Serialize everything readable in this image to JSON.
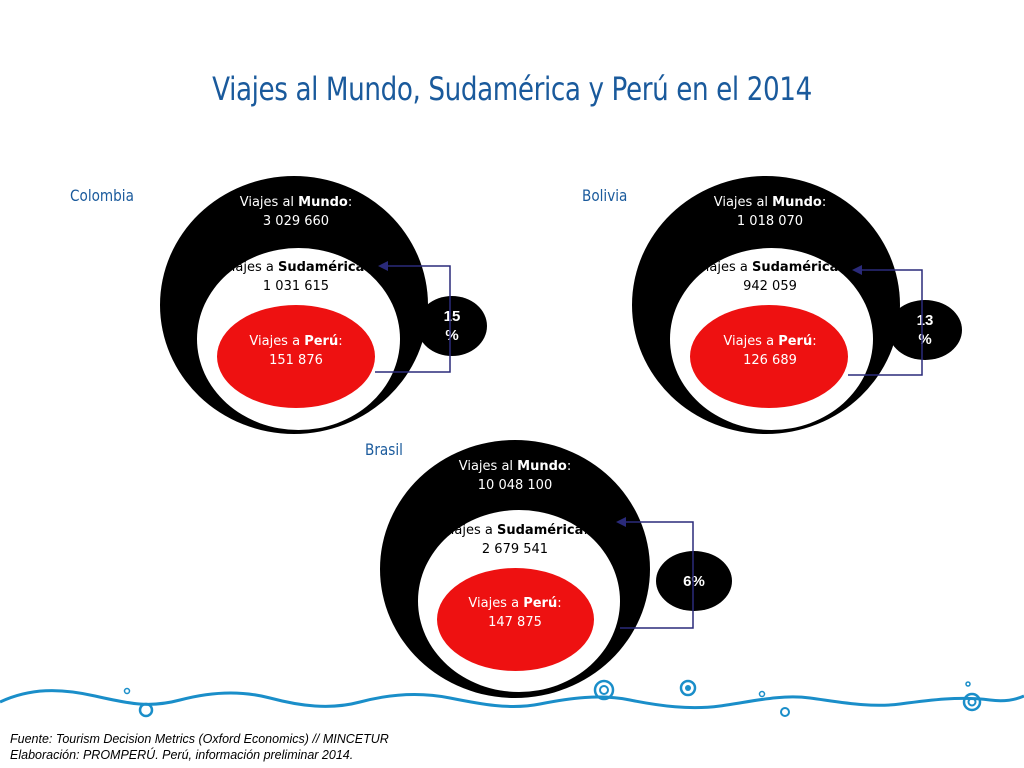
{
  "title": "Viajes al Mundo, Sudamérica y Perú en el 2014",
  "labels": {
    "mundo_prefix": "Viajes al ",
    "mundo_bold": "Mundo",
    "sud_prefix": "Viajes a ",
    "sud_bold": "Sudamérica",
    "peru_prefix": "Viajes a ",
    "peru_bold": "Perú",
    "colon": ":"
  },
  "countries": {
    "colombia": {
      "name": "Colombia",
      "mundo": "3 029 660",
      "sudamerica": "1 031 615",
      "peru": "151 876",
      "pct_line1": "15",
      "pct_line2": "%"
    },
    "bolivia": {
      "name": "Bolivia",
      "mundo": "1 018 070",
      "sudamerica": "942 059",
      "peru": "126 689",
      "pct_line1": "13",
      "pct_line2": "%"
    },
    "brasil": {
      "name": "Brasil",
      "mundo": "10 048 100",
      "sudamerica": "2 679 541",
      "peru": "147 875",
      "pct_line1": "6%",
      "pct_line2": ""
    }
  },
  "source": {
    "line1": "Fuente: Tourism Decision Metrics (Oxford Economics) // MINCETUR",
    "line2": "Elaboración: PROMPERÚ. Perú, información preliminar 2014."
  },
  "colors": {
    "title": "#1a5a9c",
    "outer": "#000000",
    "inner": "#ee1111",
    "arrow": "#2a2a7a",
    "wave": "#1a8ec9"
  }
}
